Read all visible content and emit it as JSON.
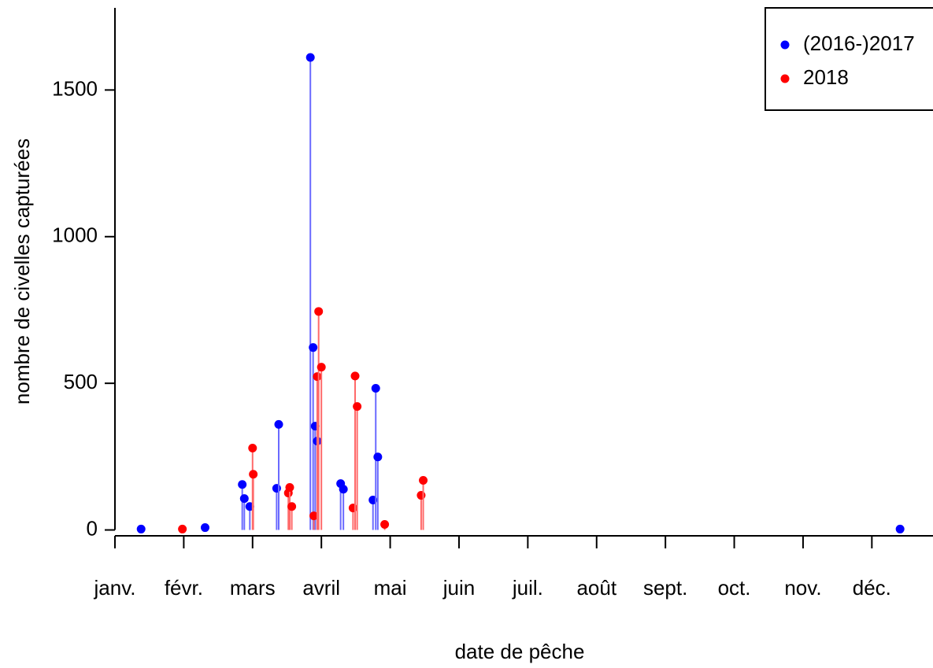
{
  "chart_data": {
    "type": "lollipop",
    "x_label": "date de pêche",
    "y_label": "nombre de civelles capturées",
    "xlim": [
      0,
      11.9
    ],
    "xticks": [
      {
        "value": 0,
        "label": "janv."
      },
      {
        "value": 1,
        "label": "févr."
      },
      {
        "value": 2,
        "label": "mars"
      },
      {
        "value": 3,
        "label": "avril"
      },
      {
        "value": 4,
        "label": "mai"
      },
      {
        "value": 5,
        "label": "juin"
      },
      {
        "value": 6,
        "label": "juil."
      },
      {
        "value": 7,
        "label": "août"
      },
      {
        "value": 8,
        "label": "sept."
      },
      {
        "value": 9,
        "label": "oct."
      },
      {
        "value": 10,
        "label": "nov."
      },
      {
        "value": 11,
        "label": "déc."
      }
    ],
    "ylim": [
      -20,
      1780
    ],
    "yticks": [
      0,
      500,
      1000,
      1500
    ],
    "legend": "top-right",
    "series": [
      {
        "name": "(2016-)2017",
        "color": "#0000ff",
        "stem_color": "#6a6aff",
        "x": [
          0.38,
          1.31,
          1.85,
          1.88,
          1.96,
          2.35,
          2.38,
          2.84,
          2.88,
          2.91,
          2.94,
          3.28,
          3.32,
          3.75,
          3.79,
          3.82,
          11.41
        ],
        "values": [
          3,
          8,
          155,
          107,
          80,
          142,
          360,
          1611,
          622,
          354,
          303,
          158,
          139,
          102,
          483,
          249,
          3
        ]
      },
      {
        "name": "2018",
        "color": "#ff0000",
        "stem_color": "#ff6a6a",
        "x": [
          0.98,
          2.0,
          2.01,
          2.52,
          2.54,
          2.57,
          2.89,
          2.94,
          2.96,
          3.0,
          3.46,
          3.49,
          3.52,
          3.92,
          4.45,
          4.48
        ],
        "values": [
          3,
          279,
          190,
          126,
          145,
          80,
          48,
          523,
          745,
          555,
          75,
          525,
          421,
          19,
          118,
          169
        ]
      }
    ]
  }
}
